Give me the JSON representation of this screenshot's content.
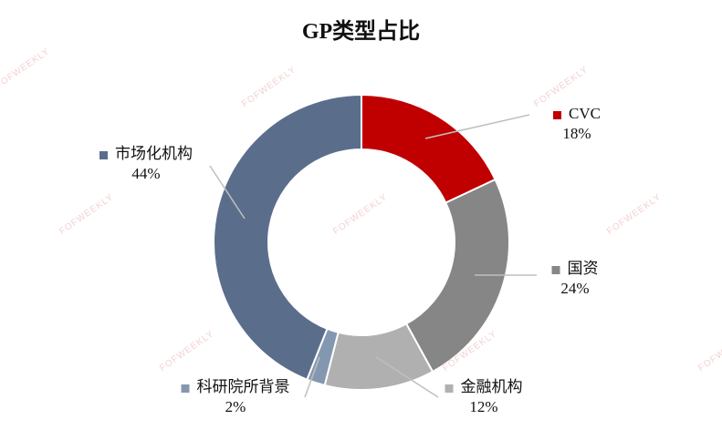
{
  "watermark": "FOFWEEKLY",
  "chart_data": {
    "type": "pie",
    "donut": true,
    "title": "GP类型占比",
    "slices": [
      {
        "label": "CVC",
        "value": 18,
        "pct_label": "18%",
        "color": "#C00000"
      },
      {
        "label": "国资",
        "value": 24,
        "pct_label": "24%",
        "color": "#868686"
      },
      {
        "label": "金融机构",
        "value": 12,
        "pct_label": "12%",
        "color": "#B0B0B0"
      },
      {
        "label": "科研院所背景",
        "value": 2,
        "pct_label": "2%",
        "color": "#8497B0"
      },
      {
        "label": "市场化机构",
        "value": 44,
        "pct_label": "44%",
        "color": "#5A6E8C"
      }
    ],
    "start_angle": "12 o'clock",
    "direction": "clockwise"
  }
}
